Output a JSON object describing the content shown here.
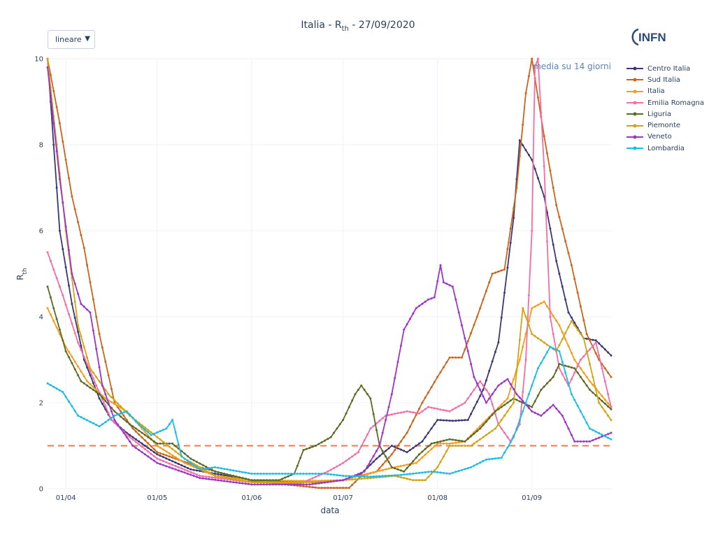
{
  "title_main": "Italia - R",
  "title_sub": "th",
  "title_date": " - 27/09/2020",
  "scale_selector": {
    "value": "lineare",
    "arrow": "▼"
  },
  "logo_text": "INFN",
  "annotation": "media su 14 giorni",
  "ylabel_main": "R",
  "ylabel_sub": "th",
  "colors": {
    "threshold": "#f0794a",
    "grid": "#eef0f4",
    "text": "#2a3f5f"
  },
  "chart_data": {
    "type": "line",
    "title": "Italia - Rth - 27/09/2020",
    "xlabel": "data",
    "ylabel": "Rth",
    "xlim": [
      "2020-03-26",
      "2020-09-27"
    ],
    "ylim": [
      0,
      10
    ],
    "x_ticks": [
      "2020-04-01",
      "2020-05-01",
      "2020-06-01",
      "2020-07-01",
      "2020-08-01",
      "2020-09-01"
    ],
    "x_tick_labels": [
      "01/04",
      "01/05",
      "01/06",
      "01/07",
      "01/08",
      "01/09"
    ],
    "y_ticks": [
      0,
      2,
      4,
      6,
      8,
      10
    ],
    "threshold": 1,
    "grid": true,
    "legend_position": "right",
    "series": [
      {
        "name": "Centro Italia",
        "color": "#3a3773",
        "points": [
          [
            "2020-03-26",
            10
          ],
          [
            "2020-03-30",
            6
          ],
          [
            "2020-04-03",
            4.3
          ],
          [
            "2020-04-07",
            3
          ],
          [
            "2020-04-12",
            2.1
          ],
          [
            "2020-04-16",
            1.6
          ],
          [
            "2020-04-21",
            1.3
          ],
          [
            "2020-05-01",
            0.8
          ],
          [
            "2020-05-12",
            0.45
          ],
          [
            "2020-06-01",
            0.2
          ],
          [
            "2020-06-21",
            0.15
          ],
          [
            "2020-07-01",
            0.2
          ],
          [
            "2020-07-07",
            0.35
          ],
          [
            "2020-07-12",
            0.7
          ],
          [
            "2020-07-17",
            1
          ],
          [
            "2020-07-22",
            0.85
          ],
          [
            "2020-07-27",
            1.1
          ],
          [
            "2020-08-01",
            1.6
          ],
          [
            "2020-08-06",
            1.58
          ],
          [
            "2020-08-11",
            1.6
          ],
          [
            "2020-08-16",
            2.3
          ],
          [
            "2020-08-21",
            3.4
          ],
          [
            "2020-08-26",
            6.3
          ],
          [
            "2020-08-28",
            8.1
          ],
          [
            "2020-09-01",
            7.65
          ],
          [
            "2020-09-05",
            6.8
          ],
          [
            "2020-09-09",
            5.3
          ],
          [
            "2020-09-13",
            4.1
          ],
          [
            "2020-09-18",
            3.5
          ],
          [
            "2020-09-22",
            3.45
          ],
          [
            "2020-09-27",
            3.1
          ]
        ]
      },
      {
        "name": "Sud Italia",
        "color": "#c8651b",
        "points": [
          [
            "2020-03-26",
            10
          ],
          [
            "2020-03-30",
            8.5
          ],
          [
            "2020-04-03",
            6.8
          ],
          [
            "2020-04-07",
            5.6
          ],
          [
            "2020-04-12",
            3.6
          ],
          [
            "2020-04-17",
            2
          ],
          [
            "2020-04-23",
            1.4
          ],
          [
            "2020-05-01",
            0.85
          ],
          [
            "2020-05-15",
            0.5
          ],
          [
            "2020-06-01",
            0.18
          ],
          [
            "2020-06-15",
            0.08
          ],
          [
            "2020-06-23",
            0.02
          ],
          [
            "2020-07-03",
            0.02
          ],
          [
            "2020-07-07",
            0.3
          ],
          [
            "2020-07-12",
            0.4
          ],
          [
            "2020-07-17",
            0.8
          ],
          [
            "2020-07-22",
            1.3
          ],
          [
            "2020-07-27",
            2
          ],
          [
            "2020-08-01",
            2.6
          ],
          [
            "2020-08-05",
            3.05
          ],
          [
            "2020-08-09",
            3.05
          ],
          [
            "2020-08-14",
            4
          ],
          [
            "2020-08-19",
            5
          ],
          [
            "2020-08-23",
            5.1
          ],
          [
            "2020-08-27",
            7
          ],
          [
            "2020-08-30",
            9.2
          ],
          [
            "2020-09-01",
            10
          ],
          [
            "2020-09-05",
            8.2
          ],
          [
            "2020-09-09",
            6.6
          ],
          [
            "2020-09-14",
            5.2
          ],
          [
            "2020-09-19",
            3.6
          ],
          [
            "2020-09-23",
            3
          ],
          [
            "2020-09-27",
            2.6
          ]
        ]
      },
      {
        "name": "Italia",
        "color": "#f29d1e",
        "points": [
          [
            "2020-03-26",
            4.2
          ],
          [
            "2020-04-01",
            3.3
          ],
          [
            "2020-04-08",
            2.5
          ],
          [
            "2020-04-14",
            2.1
          ],
          [
            "2020-04-21",
            1.8
          ],
          [
            "2020-05-01",
            1
          ],
          [
            "2020-05-10",
            0.6
          ],
          [
            "2020-05-20",
            0.3
          ],
          [
            "2020-06-01",
            0.2
          ],
          [
            "2020-06-20",
            0.18
          ],
          [
            "2020-07-01",
            0.2
          ],
          [
            "2020-07-05",
            0.28
          ],
          [
            "2020-07-12",
            0.4
          ],
          [
            "2020-07-18",
            0.5
          ],
          [
            "2020-07-25",
            0.6
          ],
          [
            "2020-08-01",
            1.05
          ],
          [
            "2020-08-05",
            1.05
          ],
          [
            "2020-08-10",
            1.1
          ],
          [
            "2020-08-17",
            1.6
          ],
          [
            "2020-08-24",
            2.1
          ],
          [
            "2020-08-28",
            3
          ],
          [
            "2020-09-01",
            4.2
          ],
          [
            "2020-09-05",
            4.35
          ],
          [
            "2020-09-10",
            3.8
          ],
          [
            "2020-09-15",
            3
          ],
          [
            "2020-09-20",
            2.5
          ],
          [
            "2020-09-27",
            1.9
          ]
        ]
      },
      {
        "name": "Emilia Romagna",
        "color": "#ef6fa6",
        "points": [
          [
            "2020-03-26",
            5.5
          ],
          [
            "2020-03-31",
            4.5
          ],
          [
            "2020-04-05",
            3.4
          ],
          [
            "2020-04-11",
            2.4
          ],
          [
            "2020-04-16",
            1.6
          ],
          [
            "2020-04-22",
            1.2
          ],
          [
            "2020-05-01",
            0.7
          ],
          [
            "2020-05-15",
            0.3
          ],
          [
            "2020-06-01",
            0.15
          ],
          [
            "2020-06-17",
            0.12
          ],
          [
            "2020-06-26",
            0.4
          ],
          [
            "2020-07-01",
            0.6
          ],
          [
            "2020-07-06",
            0.85
          ],
          [
            "2020-07-10",
            1.4
          ],
          [
            "2020-07-15",
            1.7
          ],
          [
            "2020-07-22",
            1.8
          ],
          [
            "2020-07-26",
            1.75
          ],
          [
            "2020-07-29",
            1.9
          ],
          [
            "2020-08-05",
            1.8
          ],
          [
            "2020-08-10",
            2
          ],
          [
            "2020-08-15",
            2.5
          ],
          [
            "2020-08-18",
            2.2
          ],
          [
            "2020-08-21",
            1.5
          ],
          [
            "2020-08-25",
            1.1
          ],
          [
            "2020-08-28",
            1.5
          ],
          [
            "2020-08-30",
            3
          ],
          [
            "2020-09-01",
            6
          ],
          [
            "2020-09-02",
            9.8
          ],
          [
            "2020-09-03",
            10
          ],
          [
            "2020-09-05",
            7.5
          ],
          [
            "2020-09-07",
            4
          ],
          [
            "2020-09-10",
            2.8
          ],
          [
            "2020-09-13",
            2.4
          ],
          [
            "2020-09-17",
            3
          ],
          [
            "2020-09-22",
            3.4
          ],
          [
            "2020-09-27",
            1.9
          ]
        ]
      },
      {
        "name": "Liguria",
        "color": "#596b25",
        "points": [
          [
            "2020-03-26",
            4.7
          ],
          [
            "2020-04-01",
            3.2
          ],
          [
            "2020-04-06",
            2.5
          ],
          [
            "2020-04-12",
            2.2
          ],
          [
            "2020-04-17",
            1.8
          ],
          [
            "2020-04-22",
            1.5
          ],
          [
            "2020-05-01",
            1.05
          ],
          [
            "2020-05-06",
            1.05
          ],
          [
            "2020-05-12",
            0.7
          ],
          [
            "2020-05-20",
            0.4
          ],
          [
            "2020-06-01",
            0.2
          ],
          [
            "2020-06-10",
            0.2
          ],
          [
            "2020-06-15",
            0.35
          ],
          [
            "2020-06-18",
            0.9
          ],
          [
            "2020-06-22",
            1
          ],
          [
            "2020-06-27",
            1.2
          ],
          [
            "2020-07-01",
            1.6
          ],
          [
            "2020-07-05",
            2.2
          ],
          [
            "2020-07-07",
            2.4
          ],
          [
            "2020-07-10",
            2.1
          ],
          [
            "2020-07-13",
            1
          ],
          [
            "2020-07-17",
            0.5
          ],
          [
            "2020-07-21",
            0.4
          ],
          [
            "2020-07-26",
            0.8
          ],
          [
            "2020-07-30",
            1.05
          ],
          [
            "2020-08-05",
            1.15
          ],
          [
            "2020-08-10",
            1.1
          ],
          [
            "2020-08-15",
            1.4
          ],
          [
            "2020-08-20",
            1.8
          ],
          [
            "2020-08-26",
            2.1
          ],
          [
            "2020-09-01",
            1.9
          ],
          [
            "2020-09-04",
            2.3
          ],
          [
            "2020-09-08",
            2.6
          ],
          [
            "2020-09-10",
            2.9
          ],
          [
            "2020-09-15",
            2.8
          ],
          [
            "2020-09-20",
            2.3
          ],
          [
            "2020-09-27",
            1.85
          ]
        ]
      },
      {
        "name": "Piemonte",
        "color": "#d3a315",
        "points": [
          [
            "2020-03-26",
            10
          ],
          [
            "2020-04-01",
            6
          ],
          [
            "2020-04-05",
            3.8
          ],
          [
            "2020-04-09",
            2.8
          ],
          [
            "2020-04-15",
            2.2
          ],
          [
            "2020-04-22",
            1.7
          ],
          [
            "2020-05-01",
            1.2
          ],
          [
            "2020-05-10",
            0.7
          ],
          [
            "2020-05-20",
            0.3
          ],
          [
            "2020-06-01",
            0.15
          ],
          [
            "2020-06-20",
            0.15
          ],
          [
            "2020-07-01",
            0.2
          ],
          [
            "2020-07-10",
            0.25
          ],
          [
            "2020-07-18",
            0.3
          ],
          [
            "2020-07-24",
            0.2
          ],
          [
            "2020-07-28",
            0.2
          ],
          [
            "2020-08-01",
            0.5
          ],
          [
            "2020-08-05",
            1
          ],
          [
            "2020-08-12",
            1
          ],
          [
            "2020-08-20",
            1.4
          ],
          [
            "2020-08-26",
            2
          ],
          [
            "2020-08-29",
            4.2
          ],
          [
            "2020-09-01",
            3.6
          ],
          [
            "2020-09-05",
            3.4
          ],
          [
            "2020-09-09",
            3.2
          ],
          [
            "2020-09-14",
            3.9
          ],
          [
            "2020-09-18",
            3.5
          ],
          [
            "2020-09-23",
            2
          ],
          [
            "2020-09-27",
            1.6
          ]
        ]
      },
      {
        "name": "Veneto",
        "color": "#9b35c5",
        "points": [
          [
            "2020-03-26",
            9.8
          ],
          [
            "2020-03-30",
            7.2
          ],
          [
            "2020-04-03",
            5
          ],
          [
            "2020-04-06",
            4.3
          ],
          [
            "2020-04-09",
            4.1
          ],
          [
            "2020-04-13",
            2.4
          ],
          [
            "2020-04-17",
            1.6
          ],
          [
            "2020-04-23",
            1
          ],
          [
            "2020-05-01",
            0.6
          ],
          [
            "2020-05-15",
            0.25
          ],
          [
            "2020-06-01",
            0.1
          ],
          [
            "2020-06-20",
            0.1
          ],
          [
            "2020-07-01",
            0.2
          ],
          [
            "2020-07-08",
            0.4
          ],
          [
            "2020-07-13",
            1
          ],
          [
            "2020-07-17",
            2.2
          ],
          [
            "2020-07-21",
            3.7
          ],
          [
            "2020-07-25",
            4.2
          ],
          [
            "2020-07-29",
            4.4
          ],
          [
            "2020-07-31",
            4.45
          ],
          [
            "2020-08-02",
            5.2
          ],
          [
            "2020-08-03",
            4.8
          ],
          [
            "2020-08-06",
            4.7
          ],
          [
            "2020-08-10",
            3.5
          ],
          [
            "2020-08-13",
            2.6
          ],
          [
            "2020-08-17",
            2
          ],
          [
            "2020-08-21",
            2.4
          ],
          [
            "2020-08-24",
            2.55
          ],
          [
            "2020-08-27",
            2.2
          ],
          [
            "2020-09-01",
            1.8
          ],
          [
            "2020-09-04",
            1.7
          ],
          [
            "2020-09-08",
            1.95
          ],
          [
            "2020-09-11",
            1.7
          ],
          [
            "2020-09-15",
            1.1
          ],
          [
            "2020-09-20",
            1.1
          ],
          [
            "2020-09-27",
            1.3
          ]
        ]
      },
      {
        "name": "Lombardia",
        "color": "#1cbbe6",
        "points": [
          [
            "2020-03-26",
            2.45
          ],
          [
            "2020-03-31",
            2.25
          ],
          [
            "2020-04-05",
            1.7
          ],
          [
            "2020-04-12",
            1.45
          ],
          [
            "2020-04-17",
            1.7
          ],
          [
            "2020-04-21",
            1.8
          ],
          [
            "2020-04-25",
            1.5
          ],
          [
            "2020-04-29",
            1.25
          ],
          [
            "2020-05-04",
            1.4
          ],
          [
            "2020-05-06",
            1.6
          ],
          [
            "2020-05-09",
            0.75
          ],
          [
            "2020-05-15",
            0.45
          ],
          [
            "2020-05-20",
            0.5
          ],
          [
            "2020-06-01",
            0.35
          ],
          [
            "2020-06-15",
            0.35
          ],
          [
            "2020-06-25",
            0.35
          ],
          [
            "2020-07-01",
            0.3
          ],
          [
            "2020-07-10",
            0.28
          ],
          [
            "2020-07-20",
            0.32
          ],
          [
            "2020-07-30",
            0.4
          ],
          [
            "2020-08-05",
            0.35
          ],
          [
            "2020-08-12",
            0.5
          ],
          [
            "2020-08-17",
            0.68
          ],
          [
            "2020-08-22",
            0.72
          ],
          [
            "2020-08-26",
            1.2
          ],
          [
            "2020-08-30",
            2
          ],
          [
            "2020-09-03",
            2.8
          ],
          [
            "2020-09-07",
            3.3
          ],
          [
            "2020-09-10",
            3.2
          ],
          [
            "2020-09-14",
            2.2
          ],
          [
            "2020-09-20",
            1.4
          ],
          [
            "2020-09-27",
            1.15
          ]
        ]
      }
    ]
  }
}
